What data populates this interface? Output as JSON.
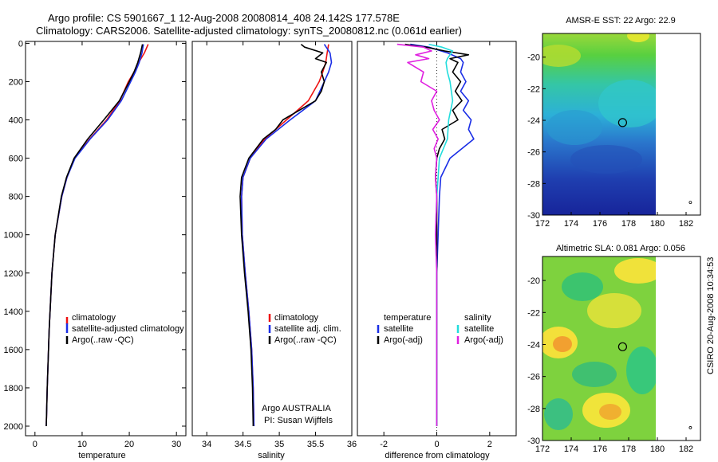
{
  "header": {
    "title_line1": "Argo profile: CS 5901667_1 12-Aug-2008 20080814_408 24.142S 177.578E",
    "title_line2": "Climatology: CARS2006. Satellite-adjusted climatology: synTS_20080812.nc (0.061d earlier)"
  },
  "footer": {
    "timestamp": "CSIRO 20-Aug-2008 10:34:53",
    "argo_country": "Argo AUSTRALIA",
    "argo_pi": "PI: Susan Wijffels"
  },
  "colors": {
    "climatology": "#ee1111",
    "satellite": "#1a2ee6",
    "argo": "#000000",
    "salinity_satellite": "#22dddd",
    "salinity_argo": "#e020e0"
  },
  "chart_data": [
    {
      "type": "line",
      "id": "temperature",
      "xlabel": "temperature",
      "ylabel": "",
      "xlim": [
        -2,
        32
      ],
      "ylim": [
        2050,
        -10
      ],
      "xticks": [
        0,
        10,
        20,
        30
      ],
      "yticks": [
        0,
        200,
        400,
        600,
        800,
        1000,
        1200,
        1400,
        1600,
        1800,
        2000
      ],
      "legend": [
        "climatology",
        "satellite-adjusted climatology",
        "Argo(..raw -QC)"
      ],
      "series": [
        {
          "name": "climatology",
          "color": "#ee1111",
          "depth": [
            5,
            50,
            100,
            150,
            200,
            300,
            400,
            500,
            600,
            700,
            800,
            1000,
            1200,
            1500,
            1800,
            2000
          ],
          "values": [
            24.0,
            23.2,
            22.0,
            21.0,
            19.8,
            18.0,
            15.2,
            11.6,
            8.4,
            6.8,
            5.7,
            4.3,
            3.6,
            3.0,
            2.6,
            2.4
          ]
        },
        {
          "name": "satellite-adjusted climatology",
          "color": "#1a2ee6",
          "depth": [
            5,
            50,
            100,
            150,
            200,
            300,
            400,
            500,
            600,
            700,
            800,
            1000,
            1200,
            1500,
            1800,
            2000
          ],
          "values": [
            23.0,
            22.7,
            22.1,
            21.3,
            20.3,
            18.3,
            15.4,
            11.7,
            8.5,
            6.8,
            5.7,
            4.3,
            3.6,
            3.0,
            2.6,
            2.4
          ]
        },
        {
          "name": "Argo(..raw -QC)",
          "color": "#000000",
          "depth": [
            5,
            50,
            100,
            150,
            200,
            300,
            400,
            500,
            600,
            700,
            800,
            1000,
            1200,
            1500,
            1800,
            2000
          ],
          "values": [
            22.8,
            22.4,
            21.8,
            21.0,
            20.0,
            17.9,
            14.6,
            11.2,
            8.3,
            6.7,
            5.6,
            4.3,
            3.6,
            3.0,
            2.6,
            2.4
          ]
        }
      ]
    },
    {
      "type": "line",
      "id": "salinity",
      "xlabel": "salinity",
      "ylabel": "",
      "xlim": [
        33.8,
        36.0
      ],
      "ylim": [
        2050,
        -10
      ],
      "xticks": [
        34,
        34.5,
        35,
        35.5,
        36
      ],
      "yticks": [],
      "legend": [
        "climatology",
        "satellite adj. clim.",
        "Argo(..raw -QC)"
      ],
      "series": [
        {
          "name": "climatology",
          "color": "#ee1111",
          "depth": [
            5,
            50,
            100,
            150,
            200,
            300,
            400,
            500,
            600,
            700,
            800,
            1000,
            1200,
            1400,
            1600,
            1800,
            2000
          ],
          "values": [
            35.68,
            35.66,
            35.64,
            35.6,
            35.55,
            35.4,
            35.1,
            34.8,
            34.6,
            34.5,
            34.48,
            34.49,
            34.53,
            34.58,
            34.62,
            34.64,
            34.65
          ]
        },
        {
          "name": "satellite adj. clim.",
          "color": "#1a2ee6",
          "depth": [
            5,
            50,
            100,
            150,
            200,
            300,
            400,
            500,
            600,
            700,
            800,
            1000,
            1200,
            1400,
            1600,
            1800,
            2000
          ],
          "values": [
            35.62,
            35.7,
            35.72,
            35.68,
            35.62,
            35.5,
            35.15,
            34.82,
            34.6,
            34.5,
            34.48,
            34.49,
            34.53,
            34.58,
            34.62,
            34.64,
            34.65
          ]
        },
        {
          "name": "Argo(..raw -QC)",
          "color": "#000000",
          "depth": [
            5,
            20,
            50,
            80,
            100,
            150,
            200,
            250,
            300,
            400,
            450,
            500,
            600,
            700,
            800,
            1000,
            1200,
            1400,
            1600,
            1800,
            2000
          ],
          "values": [
            35.3,
            35.35,
            35.6,
            35.5,
            35.65,
            35.58,
            35.62,
            35.58,
            35.5,
            35.05,
            34.95,
            34.78,
            34.58,
            34.48,
            34.46,
            34.48,
            34.52,
            34.57,
            34.61,
            34.63,
            34.64
          ]
        }
      ]
    },
    {
      "type": "line",
      "id": "difference",
      "xlabel": "difference from climatology",
      "ylabel": "",
      "xlim": [
        -3.0,
        3.0
      ],
      "ylim": [
        2050,
        -10
      ],
      "xticks": [
        -2,
        0,
        2
      ],
      "yticks": [],
      "legend_groups": [
        {
          "heading": "temperature",
          "items": [
            "satellite",
            "Argo(-adj)"
          ]
        },
        {
          "heading": "salinity",
          "items": [
            "satellite",
            "Argo(-adj)"
          ]
        }
      ],
      "series": [
        {
          "name": "temperature satellite",
          "color": "#1a2ee6",
          "depth": [
            5,
            20,
            50,
            80,
            100,
            150,
            200,
            250,
            300,
            350,
            400,
            450,
            500,
            600,
            700,
            800,
            1000,
            1200,
            1500,
            2000
          ],
          "values": [
            -1.0,
            -0.3,
            0.4,
            0.9,
            1.0,
            0.9,
            1.1,
            0.9,
            1.2,
            1.0,
            1.3,
            1.2,
            1.4,
            0.5,
            0.15,
            0.1,
            0.05,
            0.0,
            0.0,
            0.0
          ]
        },
        {
          "name": "temperature Argo(-adj)",
          "color": "#000000",
          "depth": [
            5,
            20,
            40,
            60,
            80,
            100,
            150,
            200,
            250,
            300,
            350,
            400,
            450,
            500,
            550,
            600,
            700,
            800,
            1000,
            1200,
            1500,
            2000
          ],
          "values": [
            -1.2,
            -0.4,
            0.3,
            1.2,
            0.5,
            0.8,
            0.6,
            0.9,
            0.7,
            0.95,
            0.6,
            0.8,
            0.2,
            0.3,
            0.1,
            0.0,
            -0.05,
            0.0,
            0.0,
            0.0,
            0.0,
            0.0
          ]
        },
        {
          "name": "salinity satellite",
          "color": "#22dddd",
          "depth": [
            5,
            20,
            40,
            80,
            100,
            150,
            200,
            300,
            400,
            500,
            600,
            700,
            800,
            1000,
            1200,
            1500,
            2000
          ],
          "values": [
            -0.3,
            0.2,
            0.6,
            0.4,
            0.35,
            0.4,
            0.5,
            0.6,
            0.45,
            0.4,
            0.1,
            0.05,
            0.0,
            -0.05,
            0.0,
            0.0,
            0.0
          ]
        },
        {
          "name": "salinity Argo(-adj)",
          "color": "#e020e0",
          "depth": [
            5,
            20,
            40,
            60,
            80,
            100,
            150,
            200,
            250,
            300,
            350,
            400,
            450,
            500,
            550,
            600,
            700,
            800,
            1000,
            1200,
            1500,
            2000
          ],
          "values": [
            -1.5,
            -0.5,
            -0.2,
            -0.8,
            -0.3,
            -1.1,
            -0.5,
            -0.6,
            0.0,
            -0.2,
            -0.1,
            0.1,
            -0.15,
            0.05,
            -0.1,
            0.0,
            -0.05,
            0.0,
            -0.05,
            0.0,
            0.0,
            0.0
          ]
        }
      ]
    },
    {
      "type": "heatmap",
      "id": "sst_map",
      "title": "AMSR-E SST: 22 Argo: 22.9",
      "xlim": [
        172,
        183
      ],
      "ylim": [
        -30,
        -18.5
      ],
      "xticks": [
        172,
        174,
        176,
        178,
        180,
        182
      ],
      "yticks": [
        -20,
        -22,
        -24,
        -26,
        -28,
        -30
      ],
      "argo_position": {
        "lon": 177.578,
        "lat": -24.142
      },
      "data_lon_max": 180
    },
    {
      "type": "heatmap",
      "id": "sla_map",
      "title": "Altimetric SLA: 0.081 Argo: 0.056",
      "xlim": [
        172,
        183
      ],
      "ylim": [
        -30,
        -18.5
      ],
      "xticks": [
        172,
        174,
        176,
        178,
        180,
        182
      ],
      "yticks": [
        -20,
        -22,
        -24,
        -26,
        -28,
        -30
      ],
      "argo_position": {
        "lon": 177.578,
        "lat": -24.142
      },
      "data_lon_max": 180
    }
  ]
}
